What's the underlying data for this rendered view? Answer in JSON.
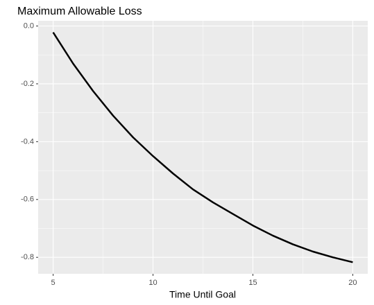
{
  "chart_data": {
    "type": "line",
    "title": "Maximum Allowable Loss",
    "x_label": "Time Until Goal",
    "x": [
      5,
      6,
      7,
      8,
      9,
      10,
      11,
      12,
      13,
      14,
      15,
      16,
      17,
      18,
      19,
      20
    ],
    "series": [
      {
        "color": "#000000",
        "values": [
          -0.022,
          -0.13,
          -0.225,
          -0.31,
          -0.385,
          -0.45,
          -0.51,
          -0.565,
          -0.61,
          -0.65,
          -0.69,
          -0.725,
          -0.755,
          -0.78,
          -0.8,
          -0.817
        ]
      }
    ],
    "xlim": [
      4.25,
      20.75
    ],
    "xticks": [
      5,
      10,
      15,
      20
    ],
    "ylim": [
      -0.857,
      0.018
    ],
    "yticks": [
      {
        "value": 0,
        "label": "0.0"
      },
      -0.2,
      -0.4,
      -0.6,
      -0.8
    ],
    "x_minor_gridlines": [
      7.5,
      12.5,
      17.5
    ],
    "y_minor_gridlines": [
      -0.1,
      -0.3,
      -0.5,
      -0.7
    ],
    "grid": true
  }
}
